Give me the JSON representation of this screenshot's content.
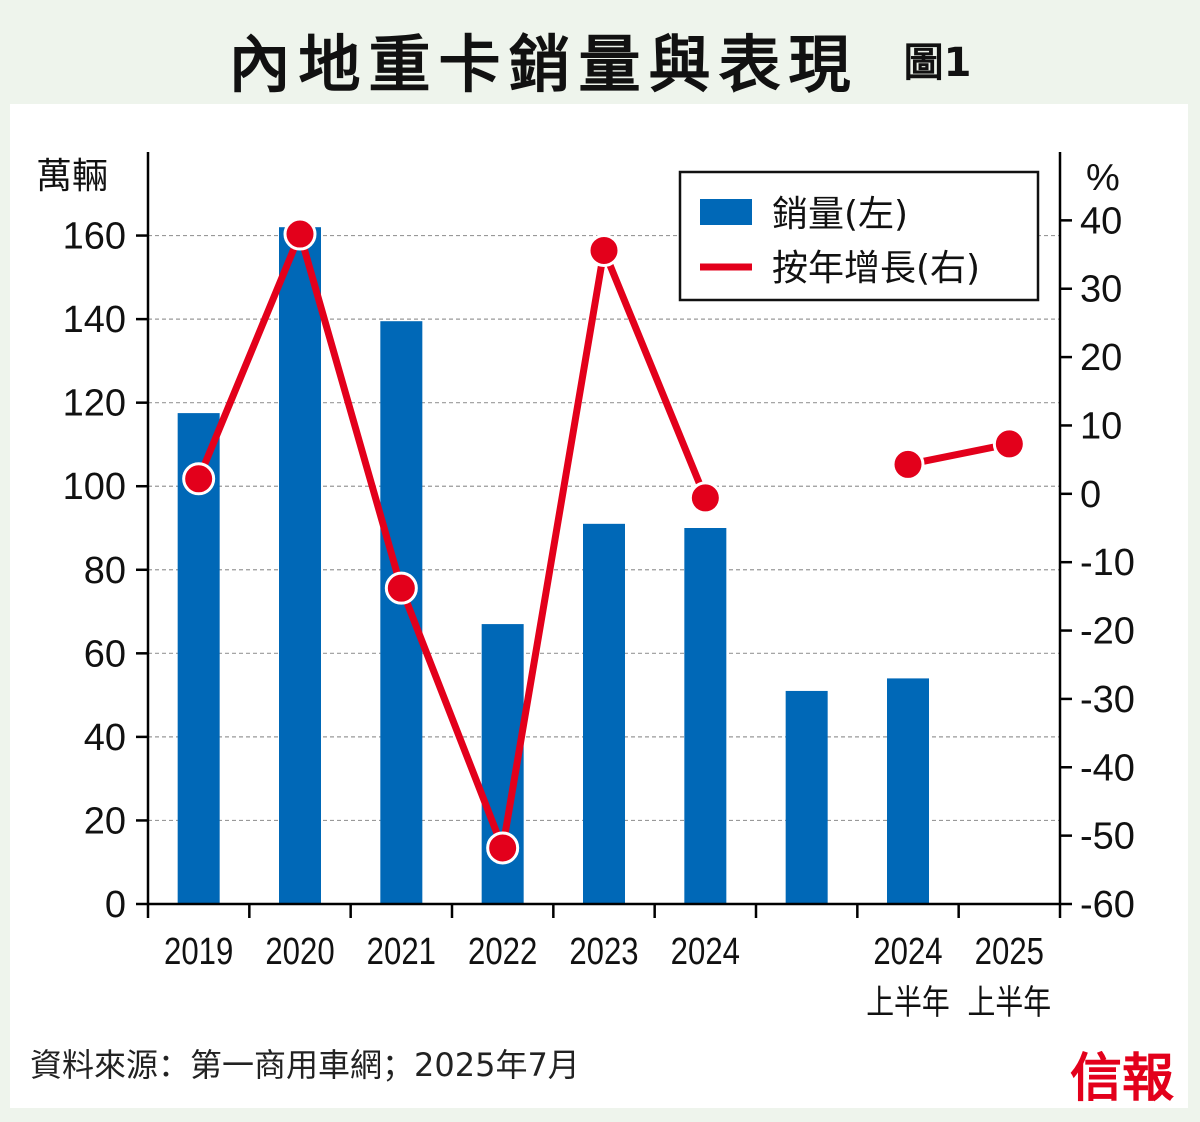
{
  "header": {
    "title": "內地重卡銷量與表現",
    "figure_label": "圖1"
  },
  "footer": {
    "source": "資料來源：第一商用車網；2025年7月",
    "brand": "信報"
  },
  "colors": {
    "bar": "#0068b7",
    "line": "#e3001b",
    "grid": "#999999",
    "background": "#eef4ec"
  },
  "chart_data": {
    "type": "bar",
    "left_axis_unit": "萬輛",
    "right_axis_unit": "%",
    "left_ticks": [
      "0",
      "20",
      "40",
      "60",
      "80",
      "100",
      "120",
      "140",
      "160"
    ],
    "right_ticks": [
      "-60",
      "-50",
      "-40",
      "-30",
      "-20",
      "-10",
      "0",
      "10",
      "20",
      "30",
      "40"
    ],
    "ylim_left": [
      0,
      180
    ],
    "ylim_right": [
      -60,
      50
    ],
    "grid": true,
    "legend_position": "top-right",
    "categories": [
      {
        "line1": "2019",
        "line2": ""
      },
      {
        "line1": "2020",
        "line2": ""
      },
      {
        "line1": "2021",
        "line2": ""
      },
      {
        "line1": "2022",
        "line2": ""
      },
      {
        "line1": "2023",
        "line2": ""
      },
      {
        "line1": "2024",
        "line2": ""
      },
      {
        "line1": "",
        "line2": ""
      },
      {
        "line1": "2024",
        "line2": "上半年"
      },
      {
        "line1": "2025",
        "line2": "上半年"
      }
    ],
    "series": [
      {
        "name": "銷量(左)",
        "type": "bar",
        "axis": "left",
        "values": [
          117.5,
          162,
          139.5,
          67,
          91,
          90,
          51,
          54,
          null
        ]
      },
      {
        "name": "按年增長(右)",
        "type": "line",
        "axis": "right",
        "segments": [
          [
            2.2,
            38,
            -13.8,
            -51.8,
            35.6,
            -0.6
          ],
          [
            4.3,
            7.3
          ]
        ]
      }
    ]
  }
}
